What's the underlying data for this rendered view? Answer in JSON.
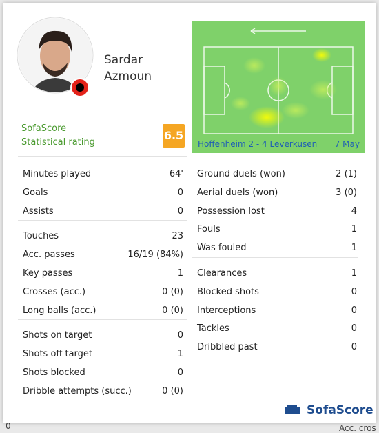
{
  "player": {
    "first_name": "Sardar",
    "last_name": "Azmoun"
  },
  "rating": {
    "brand": "SofaScore",
    "label": "Statistical rating",
    "value": "6.5"
  },
  "heatmap": {
    "match": "Hoffenheim 2 - 4 Leverkusen",
    "date": "7 May"
  },
  "left_groups": [
    [
      {
        "label": "Minutes played",
        "value": "64'"
      },
      {
        "label": "Goals",
        "value": "0"
      },
      {
        "label": "Assists",
        "value": "0"
      }
    ],
    [
      {
        "label": "Touches",
        "value": "23"
      },
      {
        "label": "Acc. passes",
        "value": "16/19 (84%)"
      },
      {
        "label": "Key passes",
        "value": "1"
      },
      {
        "label": "Crosses (acc.)",
        "value": "0 (0)"
      },
      {
        "label": "Long balls (acc.)",
        "value": "0 (0)"
      }
    ],
    [
      {
        "label": "Shots on target",
        "value": "0"
      },
      {
        "label": "Shots off target",
        "value": "1"
      },
      {
        "label": "Shots blocked",
        "value": "0"
      },
      {
        "label": "Dribble attempts (succ.)",
        "value": "0 (0)"
      }
    ]
  ],
  "right_groups": [
    [
      {
        "label": "Ground duels (won)",
        "value": "2 (1)"
      },
      {
        "label": "Aerial duels (won)",
        "value": "3 (0)"
      },
      {
        "label": "Possession lost",
        "value": "4"
      },
      {
        "label": "Fouls",
        "value": "1"
      },
      {
        "label": "Was fouled",
        "value": "1"
      }
    ],
    [
      {
        "label": "Clearances",
        "value": "1"
      },
      {
        "label": "Blocked shots",
        "value": "0"
      },
      {
        "label": "Interceptions",
        "value": "0"
      },
      {
        "label": "Tackles",
        "value": "0"
      },
      {
        "label": "Dribbled past",
        "value": "0"
      }
    ]
  ],
  "footer": {
    "logo": "SofaScore"
  },
  "background": {
    "left_text": "0",
    "right_text": "Acc. cros"
  }
}
